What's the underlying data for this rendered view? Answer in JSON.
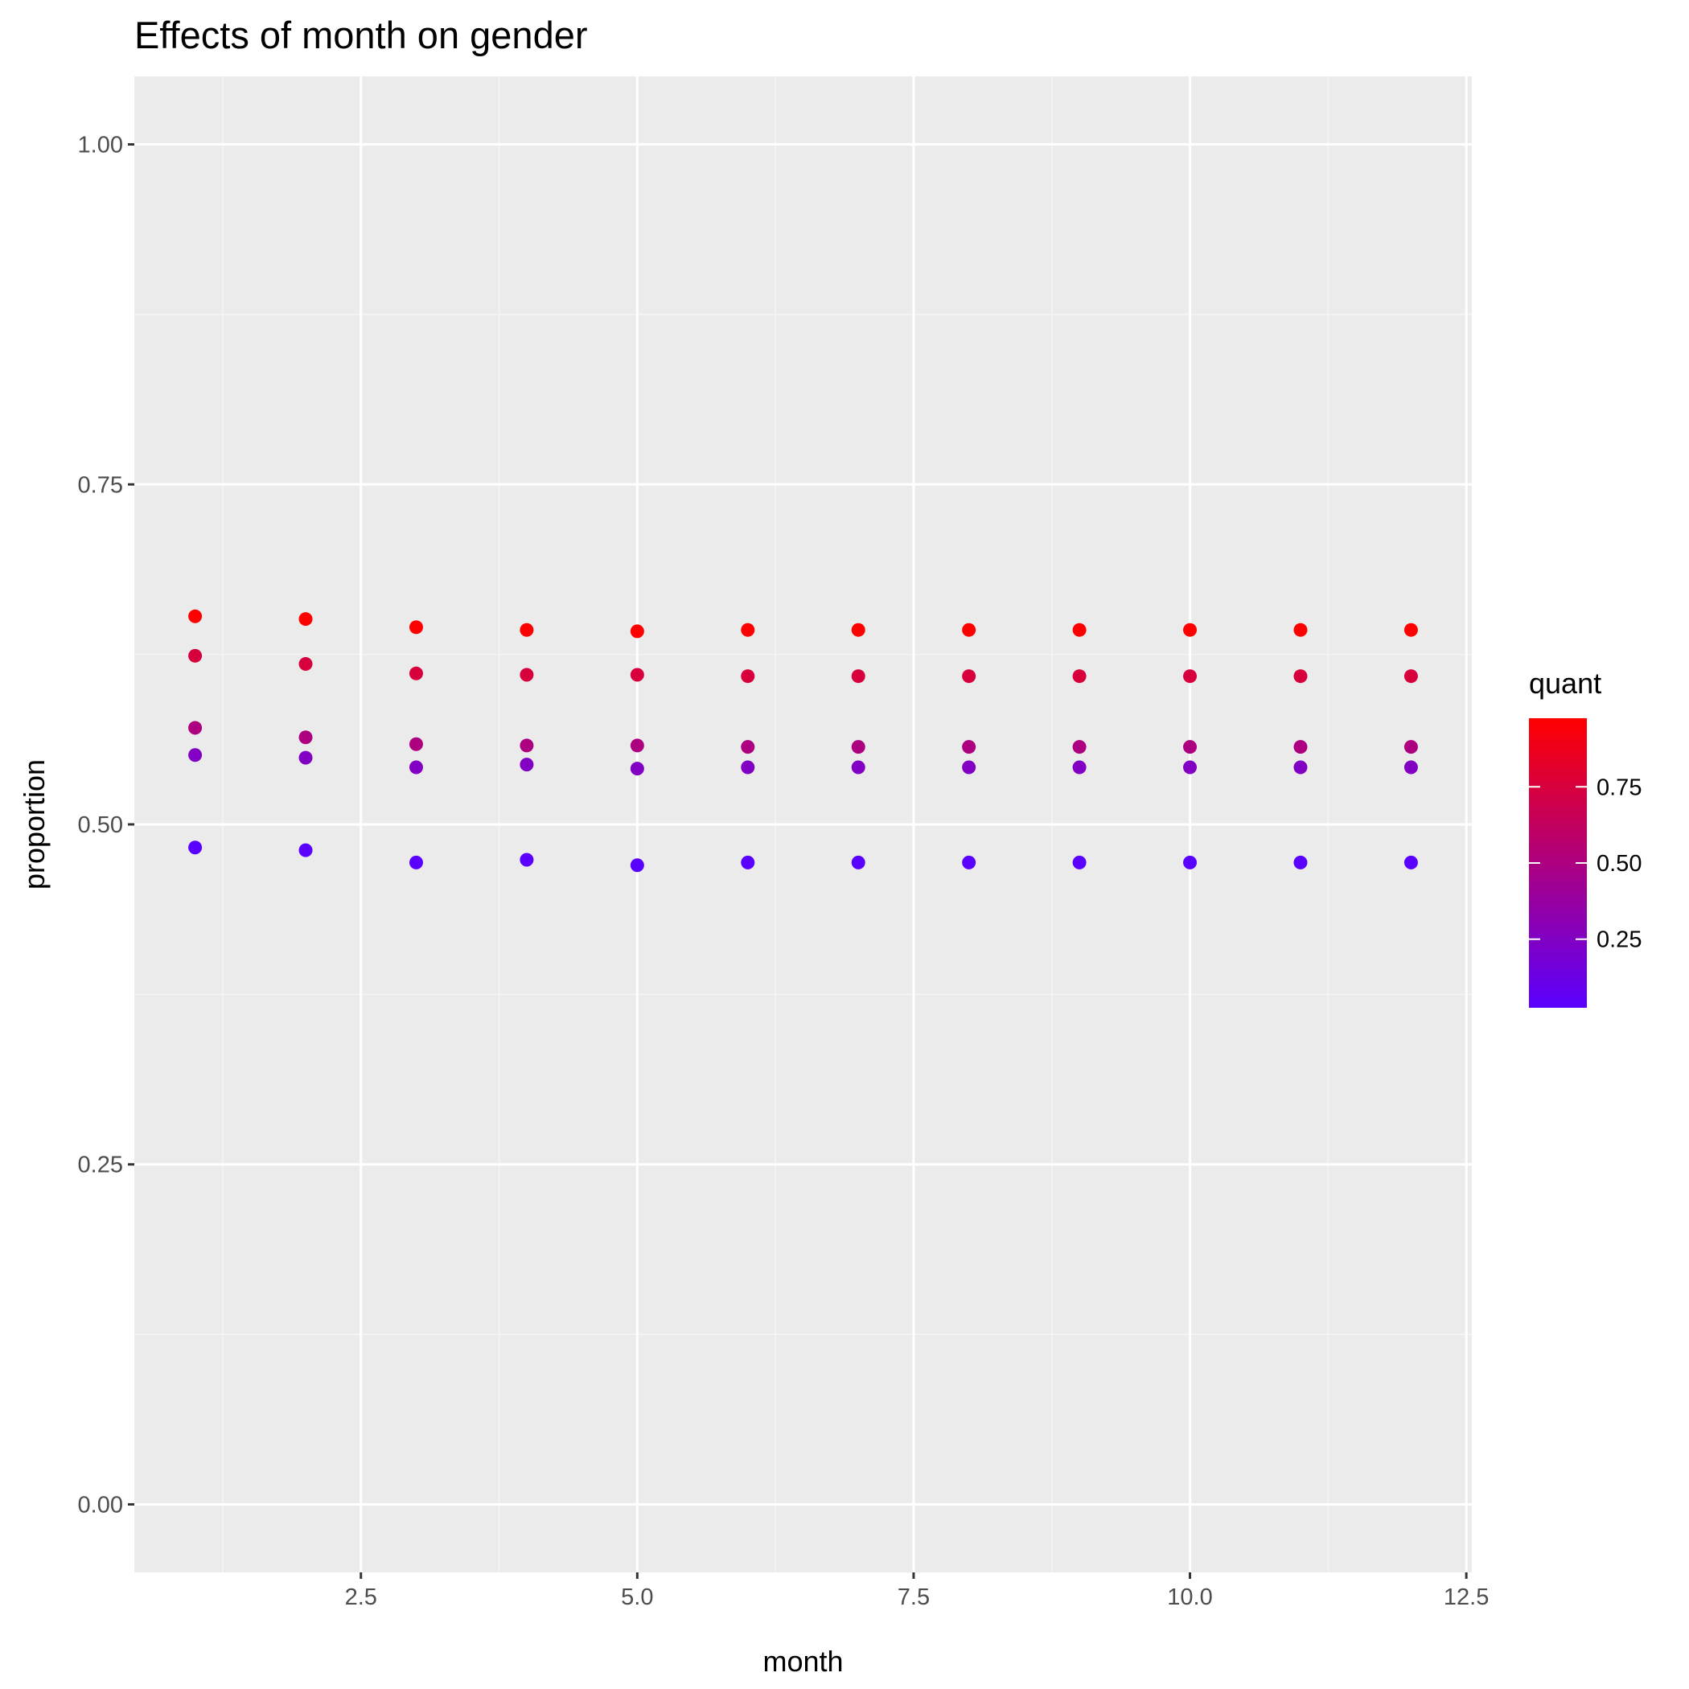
{
  "chart_data": {
    "type": "scatter",
    "title": "Effects of month on gender",
    "xlabel": "month",
    "ylabel": "proportion",
    "xlim": [
      0.45,
      12.55
    ],
    "ylim": [
      -0.05,
      1.05
    ],
    "x_ticks": [
      2.5,
      5.0,
      7.5,
      10.0,
      12.5
    ],
    "x_tick_labels": [
      "2.5",
      "5.0",
      "7.5",
      "10.0",
      "12.5"
    ],
    "y_ticks": [
      0.0,
      0.25,
      0.5,
      0.75,
      1.0
    ],
    "y_tick_labels": [
      "0.00",
      "0.25",
      "0.50",
      "0.75",
      "1.00"
    ],
    "grid": true,
    "legend": {
      "title": "quant",
      "placement": "right",
      "type": "colorbar",
      "range": [
        0.025,
        0.975
      ],
      "breaks": [
        0.25,
        0.5,
        0.75
      ],
      "break_labels": [
        "0.25",
        "0.50",
        "0.75"
      ],
      "low_color": "#5a00ff",
      "high_color": "#ff0000"
    },
    "colors": {
      "panel_background": "#ebebeb",
      "grid_major": "#ffffff",
      "grid_minor": "#f5f5f5"
    },
    "series": [
      {
        "quant": 0.025,
        "x": [
          1,
          2,
          3,
          4,
          5,
          6,
          7,
          8,
          9,
          10,
          11,
          12
        ],
        "y": [
          0.483,
          0.481,
          0.472,
          0.474,
          0.47,
          0.472,
          0.472,
          0.472,
          0.472,
          0.472,
          0.472,
          0.472
        ]
      },
      {
        "quant": 0.25,
        "x": [
          1,
          2,
          3,
          4,
          5,
          6,
          7,
          8,
          9,
          10,
          11,
          12
        ],
        "y": [
          0.551,
          0.549,
          0.542,
          0.544,
          0.541,
          0.542,
          0.542,
          0.542,
          0.542,
          0.542,
          0.542,
          0.542
        ]
      },
      {
        "quant": 0.5,
        "x": [
          1,
          2,
          3,
          4,
          5,
          6,
          7,
          8,
          9,
          10,
          11,
          12
        ],
        "y": [
          0.571,
          0.564,
          0.559,
          0.558,
          0.558,
          0.557,
          0.557,
          0.557,
          0.557,
          0.557,
          0.557,
          0.557
        ]
      },
      {
        "quant": 0.75,
        "x": [
          1,
          2,
          3,
          4,
          5,
          6,
          7,
          8,
          9,
          10,
          11,
          12
        ],
        "y": [
          0.624,
          0.618,
          0.611,
          0.61,
          0.61,
          0.609,
          0.609,
          0.609,
          0.609,
          0.609,
          0.609,
          0.609
        ]
      },
      {
        "quant": 0.975,
        "x": [
          1,
          2,
          3,
          4,
          5,
          6,
          7,
          8,
          9,
          10,
          11,
          12
        ],
        "y": [
          0.653,
          0.651,
          0.645,
          0.643,
          0.642,
          0.643,
          0.643,
          0.643,
          0.643,
          0.643,
          0.643,
          0.643
        ]
      }
    ]
  }
}
